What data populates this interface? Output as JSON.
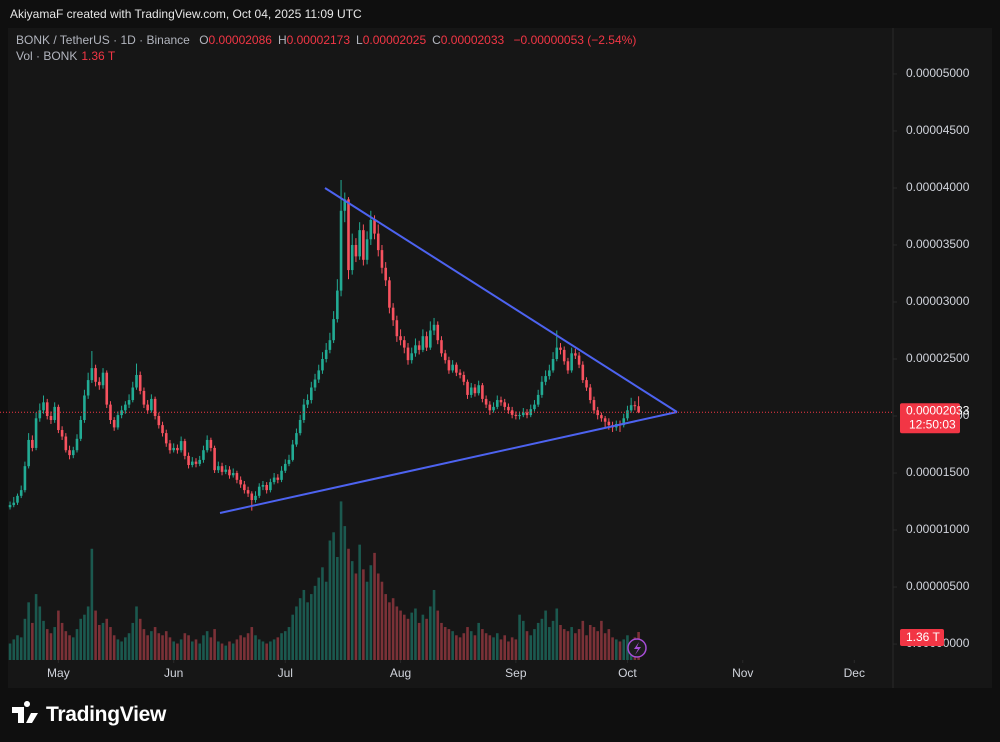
{
  "header": {
    "credit": "AkiyamaF created with TradingView.com, Oct 04, 2025 11:09 UTC",
    "symbol": "BONK / TetherUS · 1D · Binance",
    "ohlc": [
      {
        "key": "O",
        "value": "0.00002086"
      },
      {
        "key": "H",
        "value": "0.00002173"
      },
      {
        "key": "L",
        "value": "0.00002025"
      },
      {
        "key": "C",
        "value": "0.00002033"
      }
    ],
    "change": "−0.00000053 (−2.54%)",
    "vol_label": "Vol · BONK",
    "vol_value": "1.36 T"
  },
  "chart_data": {
    "type": "candlestick",
    "up_color": "#22ab94",
    "down_color": "#f7525f",
    "open": [
      1.2e-05,
      1.219e-05,
      1.24e-05,
      1.3e-05,
      1.35e-05,
      1.56e-05,
      1.79e-05,
      1.72e-05,
      1.98e-05,
      2.05e-05,
      2.12e-05,
      2e-05,
      1.965e-05,
      2.08e-05,
      1.877e-05,
      1.82e-05,
      1.7e-05,
      1.657e-05,
      1.7e-05,
      1.8e-05,
      1.965e-05,
      2.18e-05,
      2.315e-05,
      2.42e-05,
      2.3e-05,
      2.27e-05,
      2.38e-05,
      2.1e-05,
      1.965e-05,
      1.9e-05,
      2.008e-05,
      2.05e-05,
      2.1e-05,
      2.14e-05,
      2.25e-05,
      2.36e-05,
      2.22e-05,
      2.1e-05,
      2.05e-05,
      2.15e-05,
      2e-05,
      1.92e-05,
      1.85e-05,
      1.76e-05,
      1.7e-05,
      1.72e-05,
      1.7e-05,
      1.78e-05,
      1.65e-05,
      1.57e-05,
      1.6e-05,
      1.58e-05,
      1.615e-05,
      1.7e-05,
      1.79e-05,
      1.72e-05,
      1.525e-05,
      1.56e-05,
      1.51e-05,
      1.53e-05,
      1.48e-05,
      1.5e-05,
      1.44e-05,
      1.4e-05,
      1.35e-05,
      1.32e-05,
      1.263e-05,
      1.3e-05,
      1.38e-05,
      1.395e-05,
      1.35e-05,
      1.42e-05,
      1.46e-05,
      1.44e-05,
      1.52e-05,
      1.58e-05,
      1.615e-05,
      1.75e-05,
      1.85e-05,
      1.965e-05,
      2.1e-05,
      2.14e-05,
      2.25e-05,
      2.32e-05,
      2.4e-05,
      2.5e-05,
      2.58e-05,
      2.665e-05,
      2.85e-05,
      3.1e-05,
      3.8e-05,
      3.9e-05,
      3.28e-05,
      3.5e-05,
      3.4e-05,
      3.63e-05,
      3.37e-05,
      3.55e-05,
      3.72e-05,
      3.6e-05,
      3.455e-05,
      3.3e-05,
      3.19e-05,
      2.95e-05,
      2.84e-05,
      2.7e-05,
      2.665e-05,
      2.6e-05,
      2.49e-05,
      2.55e-05,
      2.62e-05,
      2.58e-05,
      2.7e-05,
      2.6e-05,
      2.75e-05,
      2.8e-05,
      2.665e-05,
      2.55e-05,
      2.49e-05,
      2.4e-05,
      2.45e-05,
      2.38e-05,
      2.36e-05,
      2.3e-05,
      2.185e-05,
      2.25e-05,
      2.2e-05,
      2.27e-05,
      2.15e-05,
      2.1e-05,
      2.05e-05,
      2.08e-05,
      2.14e-05,
      2.12e-05,
      2.08e-05,
      2.05e-05,
      2.01e-05,
      2e-05,
      2.008e-05,
      2.03e-05,
      2.008e-05,
      2.06e-05,
      2.1e-05,
      2.185e-05,
      2.3e-05,
      2.35e-05,
      2.4e-05,
      2.5e-05,
      2.6e-05,
      2.58e-05,
      2.48e-05,
      2.4e-05,
      2.55e-05,
      2.53e-05,
      2.45e-05,
      2.315e-05,
      2.25e-05,
      2.14e-05,
      2.05e-05,
      2.008e-05,
      1.98e-05,
      1.95e-05,
      1.92e-05,
      1.9e-05,
      1.93e-05,
      1.92e-05,
      1.98e-05,
      2.05e-05,
      2.095e-05,
      2.086e-05
    ],
    "high": [
      1.25e-05,
      1.29e-05,
      1.32e-05,
      1.39e-05,
      1.6e-05,
      1.85e-05,
      1.83e-05,
      2.03e-05,
      2.11e-05,
      2.18e-05,
      2.15e-05,
      2.04e-05,
      2.12e-05,
      2.1e-05,
      1.91e-05,
      1.85e-05,
      1.74e-05,
      1.73e-05,
      1.84e-05,
      2e-05,
      2.23e-05,
      2.38e-05,
      2.57e-05,
      2.45e-05,
      2.34e-05,
      2.42e-05,
      2.4e-05,
      2.13e-05,
      1.99e-05,
      2.04e-05,
      2.09e-05,
      2.13e-05,
      2.19e-05,
      2.3e-05,
      2.46e-05,
      2.39e-05,
      2.25e-05,
      2.14e-05,
      2.19e-05,
      2.17e-05,
      2.03e-05,
      1.95e-05,
      1.88e-05,
      1.79e-05,
      1.76e-05,
      1.75e-05,
      1.82e-05,
      1.8e-05,
      1.68e-05,
      1.64e-05,
      1.63e-05,
      1.65e-05,
      1.74e-05,
      1.83e-05,
      1.81e-05,
      1.74e-05,
      1.6e-05,
      1.59e-05,
      1.57e-05,
      1.56e-05,
      1.54e-05,
      1.52e-05,
      1.47e-05,
      1.43e-05,
      1.38e-05,
      1.34e-05,
      1.34e-05,
      1.41e-05,
      1.43e-05,
      1.42e-05,
      1.45e-05,
      1.5e-05,
      1.49e-05,
      1.56e-05,
      1.62e-05,
      1.66e-05,
      1.79e-05,
      1.89e-05,
      2.01e-05,
      2.15e-05,
      2.19e-05,
      2.3e-05,
      2.37e-05,
      2.45e-05,
      2.56e-05,
      2.64e-05,
      2.73e-05,
      2.92e-05,
      3.2e-05,
      4.07e-05,
      3.96e-05,
      3.92e-05,
      3.6e-05,
      3.56e-05,
      3.7e-05,
      3.68e-05,
      3.62e-05,
      3.8e-05,
      3.76e-05,
      3.68e-05,
      3.5e-05,
      3.35e-05,
      3.22e-05,
      2.99e-05,
      2.88e-05,
      2.76e-05,
      2.7e-05,
      2.64e-05,
      2.6e-05,
      2.68e-05,
      2.66e-05,
      2.76e-05,
      2.74e-05,
      2.83e-05,
      2.86e-05,
      2.83e-05,
      2.7e-05,
      2.58e-05,
      2.52e-05,
      2.49e-05,
      2.47e-05,
      2.41e-05,
      2.39e-05,
      2.32e-05,
      2.29e-05,
      2.28e-05,
      2.31e-05,
      2.29e-05,
      2.18e-05,
      2.13e-05,
      2.12e-05,
      2.18e-05,
      2.17e-05,
      2.15e-05,
      2.11e-05,
      2.08e-05,
      2.04e-05,
      2.04e-05,
      2.07e-05,
      2.06e-05,
      2.1e-05,
      2.14e-05,
      2.23e-05,
      2.35e-05,
      2.4e-05,
      2.45e-05,
      2.56e-05,
      2.75e-05,
      2.64e-05,
      2.61e-05,
      2.51e-05,
      2.6e-05,
      2.59e-05,
      2.56e-05,
      2.48e-05,
      2.34e-05,
      2.28e-05,
      2.17e-05,
      2.08e-05,
      2.03e-05,
      2e-05,
      1.98e-05,
      1.95e-05,
      1.96e-05,
      1.96e-05,
      2.02e-05,
      2.09e-05,
      2.16e-05,
      2.13e-05,
      2.173e-05
    ],
    "low": [
      1.18e-05,
      1.2e-05,
      1.22e-05,
      1.28e-05,
      1.33e-05,
      1.54e-05,
      1.69e-05,
      1.7e-05,
      1.95e-05,
      2.02e-05,
      1.97e-05,
      1.93e-05,
      1.94e-05,
      1.85e-05,
      1.79e-05,
      1.68e-05,
      1.62e-05,
      1.63e-05,
      1.68e-05,
      1.78e-05,
      1.94e-05,
      2.15e-05,
      2.29e-05,
      2.26e-05,
      2.23e-05,
      2.24e-05,
      2.07e-05,
      1.93e-05,
      1.87e-05,
      1.88e-05,
      1.98e-05,
      2.02e-05,
      2.07e-05,
      2.12e-05,
      2.23e-05,
      2.19e-05,
      2.07e-05,
      2.02e-05,
      2.03e-05,
      1.97e-05,
      1.89e-05,
      1.82e-05,
      1.73e-05,
      1.67e-05,
      1.68e-05,
      1.67e-05,
      1.68e-05,
      1.62e-05,
      1.54e-05,
      1.55e-05,
      1.55e-05,
      1.56e-05,
      1.59e-05,
      1.68e-05,
      1.69e-05,
      1.5e-05,
      1.5e-05,
      1.48e-05,
      1.49e-05,
      1.45e-05,
      1.46e-05,
      1.41e-05,
      1.37e-05,
      1.32e-05,
      1.29e-05,
      1.17e-05,
      1.24e-05,
      1.28e-05,
      1.35e-05,
      1.32e-05,
      1.33e-05,
      1.4e-05,
      1.41e-05,
      1.42e-05,
      1.5e-05,
      1.56e-05,
      1.6e-05,
      1.73e-05,
      1.83e-05,
      1.94e-05,
      2.07e-05,
      2.11e-05,
      2.22e-05,
      2.29e-05,
      2.37e-05,
      2.47e-05,
      2.55e-05,
      2.64e-05,
      2.82e-05,
      3.05e-05,
      3.7e-05,
      3.2e-05,
      3.24e-05,
      3.35e-05,
      3.37e-05,
      3.32e-05,
      3.33e-05,
      3.5e-05,
      3.55e-05,
      3.4e-05,
      3.25e-05,
      3.14e-05,
      2.9e-05,
      2.79e-05,
      2.65e-05,
      2.62e-05,
      2.55e-05,
      2.45e-05,
      2.46e-05,
      2.52e-05,
      2.54e-05,
      2.56e-05,
      2.57e-05,
      2.58e-05,
      2.71e-05,
      2.63e-05,
      2.52e-05,
      2.46e-05,
      2.37e-05,
      2.38e-05,
      2.35e-05,
      2.33e-05,
      2.27e-05,
      2.15e-05,
      2.16e-05,
      2.17e-05,
      2.18e-05,
      2.12e-05,
      2.07e-05,
      2.01e-05,
      2.03e-05,
      2.06e-05,
      2.09e-05,
      2.05e-05,
      2.02e-05,
      1.98e-05,
      1.97e-05,
      1.97e-05,
      1.99e-05,
      1.98e-05,
      1.99e-05,
      2.04e-05,
      2.08e-05,
      2.16e-05,
      2.27e-05,
      2.32e-05,
      2.38e-05,
      2.48e-05,
      2.54e-05,
      2.45e-05,
      2.37e-05,
      2.38e-05,
      2.5e-05,
      2.42e-05,
      2.29e-05,
      2.22e-05,
      2.11e-05,
      2.02e-05,
      1.97e-05,
      1.95e-05,
      1.9e-05,
      1.88e-05,
      1.86e-05,
      1.87e-05,
      1.86e-05,
      1.9e-05,
      1.96e-05,
      2.03e-05,
      2.05e-05,
      2.025e-05
    ],
    "close": [
      1.219e-05,
      1.24e-05,
      1.3e-05,
      1.35e-05,
      1.56e-05,
      1.79e-05,
      1.72e-05,
      1.98e-05,
      2.05e-05,
      2.12e-05,
      2e-05,
      1.965e-05,
      2.08e-05,
      1.877e-05,
      1.82e-05,
      1.7e-05,
      1.657e-05,
      1.7e-05,
      1.8e-05,
      1.965e-05,
      2.18e-05,
      2.315e-05,
      2.42e-05,
      2.3e-05,
      2.27e-05,
      2.38e-05,
      2.1e-05,
      1.965e-05,
      1.9e-05,
      2.008e-05,
      2.05e-05,
      2.1e-05,
      2.14e-05,
      2.25e-05,
      2.36e-05,
      2.22e-05,
      2.1e-05,
      2.05e-05,
      2.15e-05,
      2e-05,
      1.92e-05,
      1.85e-05,
      1.76e-05,
      1.7e-05,
      1.72e-05,
      1.7e-05,
      1.78e-05,
      1.65e-05,
      1.57e-05,
      1.6e-05,
      1.58e-05,
      1.615e-05,
      1.7e-05,
      1.79e-05,
      1.72e-05,
      1.525e-05,
      1.56e-05,
      1.51e-05,
      1.53e-05,
      1.48e-05,
      1.5e-05,
      1.44e-05,
      1.4e-05,
      1.35e-05,
      1.32e-05,
      1.263e-05,
      1.3e-05,
      1.38e-05,
      1.395e-05,
      1.35e-05,
      1.42e-05,
      1.46e-05,
      1.44e-05,
      1.52e-05,
      1.58e-05,
      1.615e-05,
      1.75e-05,
      1.85e-05,
      1.965e-05,
      2.1e-05,
      2.14e-05,
      2.25e-05,
      2.32e-05,
      2.4e-05,
      2.5e-05,
      2.58e-05,
      2.665e-05,
      2.85e-05,
      3.1e-05,
      3.8e-05,
      3.9e-05,
      3.28e-05,
      3.5e-05,
      3.4e-05,
      3.63e-05,
      3.37e-05,
      3.55e-05,
      3.72e-05,
      3.6e-05,
      3.455e-05,
      3.3e-05,
      3.19e-05,
      2.95e-05,
      2.84e-05,
      2.7e-05,
      2.665e-05,
      2.6e-05,
      2.49e-05,
      2.55e-05,
      2.62e-05,
      2.58e-05,
      2.7e-05,
      2.6e-05,
      2.75e-05,
      2.8e-05,
      2.665e-05,
      2.55e-05,
      2.49e-05,
      2.4e-05,
      2.45e-05,
      2.38e-05,
      2.36e-05,
      2.3e-05,
      2.185e-05,
      2.25e-05,
      2.2e-05,
      2.27e-05,
      2.15e-05,
      2.1e-05,
      2.05e-05,
      2.08e-05,
      2.14e-05,
      2.12e-05,
      2.08e-05,
      2.05e-05,
      2.01e-05,
      2e-05,
      2.008e-05,
      2.03e-05,
      2.008e-05,
      2.06e-05,
      2.1e-05,
      2.185e-05,
      2.3e-05,
      2.35e-05,
      2.4e-05,
      2.5e-05,
      2.6e-05,
      2.58e-05,
      2.48e-05,
      2.4e-05,
      2.55e-05,
      2.53e-05,
      2.45e-05,
      2.315e-05,
      2.25e-05,
      2.14e-05,
      2.05e-05,
      2.008e-05,
      1.98e-05,
      1.95e-05,
      1.92e-05,
      1.9e-05,
      1.93e-05,
      1.92e-05,
      1.98e-05,
      2.05e-05,
      2.095e-05,
      2.086e-05,
      2.033e-05
    ],
    "volume": [
      0.8,
      1.0,
      1.2,
      1.1,
      2.0,
      2.8,
      1.8,
      3.2,
      2.6,
      1.9,
      1.5,
      1.3,
      1.6,
      2.4,
      1.8,
      1.4,
      1.2,
      1.1,
      1.5,
      2.0,
      2.2,
      2.6,
      5.4,
      2.4,
      1.7,
      1.8,
      2.0,
      1.6,
      1.2,
      1.0,
      0.9,
      1.1,
      1.3,
      1.8,
      2.6,
      2.0,
      1.5,
      1.2,
      1.4,
      1.6,
      1.3,
      1.2,
      1.4,
      1.1,
      0.9,
      0.8,
      1.0,
      1.3,
      1.2,
      0.9,
      1.0,
      0.8,
      1.2,
      1.4,
      1.1,
      1.5,
      0.9,
      0.8,
      0.7,
      0.9,
      0.8,
      1.0,
      1.2,
      1.1,
      1.3,
      1.6,
      1.2,
      1.0,
      0.9,
      0.8,
      0.9,
      1.0,
      1.1,
      1.3,
      1.4,
      1.6,
      2.2,
      2.6,
      3.0,
      3.4,
      2.8,
      3.2,
      3.6,
      4.0,
      4.5,
      3.8,
      5.8,
      6.2,
      5.0,
      7.7,
      6.5,
      5.4,
      4.8,
      4.2,
      5.6,
      4.4,
      3.8,
      4.6,
      5.2,
      4.2,
      3.8,
      3.2,
      2.8,
      3.0,
      2.6,
      2.4,
      2.2,
      2.0,
      2.3,
      2.5,
      1.8,
      2.2,
      2.0,
      2.6,
      3.4,
      2.4,
      1.8,
      1.6,
      1.5,
      1.4,
      1.2,
      1.1,
      1.3,
      1.6,
      1.4,
      1.2,
      1.8,
      1.5,
      1.3,
      1.2,
      1.1,
      1.3,
      1.0,
      1.2,
      0.9,
      1.1,
      1.0,
      2.2,
      1.9,
      1.4,
      1.2,
      1.5,
      1.8,
      2.0,
      2.4,
      1.6,
      1.9,
      2.5,
      1.7,
      1.5,
      1.4,
      1.6,
      1.3,
      1.5,
      1.9,
      1.2,
      1.7,
      1.6,
      1.4,
      1.9,
      1.3,
      1.5,
      1.1,
      1.0,
      0.9,
      1.0,
      1.2,
      0.9,
      1.1,
      1.36
    ],
    "ylim": [
      -1.4e-06,
      5.14e-05
    ],
    "yticks": [
      {
        "value": 0,
        "label": "0.00000000"
      },
      {
        "value": 5e-06,
        "label": "0.00000500"
      },
      {
        "value": 1e-05,
        "label": "0.00001000"
      },
      {
        "value": 1.5e-05,
        "label": "0.00001500"
      },
      {
        "value": 2e-05,
        "label": "0.00002000"
      },
      {
        "value": 2.5e-05,
        "label": "0.00002500"
      },
      {
        "value": 3e-05,
        "label": "0.00003000"
      },
      {
        "value": 3.5e-05,
        "label": "0.00003500"
      },
      {
        "value": 4e-05,
        "label": "0.00004000"
      },
      {
        "value": 4.5e-05,
        "label": "0.00004500"
      },
      {
        "value": 5e-05,
        "label": "0.00005000"
      }
    ],
    "xlim": [
      -2.7,
      237.4
    ],
    "xticks": [
      {
        "value": 13,
        "label": "May"
      },
      {
        "value": 44,
        "label": "Jun"
      },
      {
        "value": 74,
        "label": "Jul"
      },
      {
        "value": 105,
        "label": "Aug"
      },
      {
        "value": 136,
        "label": "Sep"
      },
      {
        "value": 166,
        "label": "Oct"
      },
      {
        "value": 197,
        "label": "Nov"
      },
      {
        "value": 227,
        "label": "Dec"
      }
    ],
    "price_label": "0.00002033",
    "countdown": "12:50:03"
  },
  "footer": {
    "brand": "TradingView"
  }
}
